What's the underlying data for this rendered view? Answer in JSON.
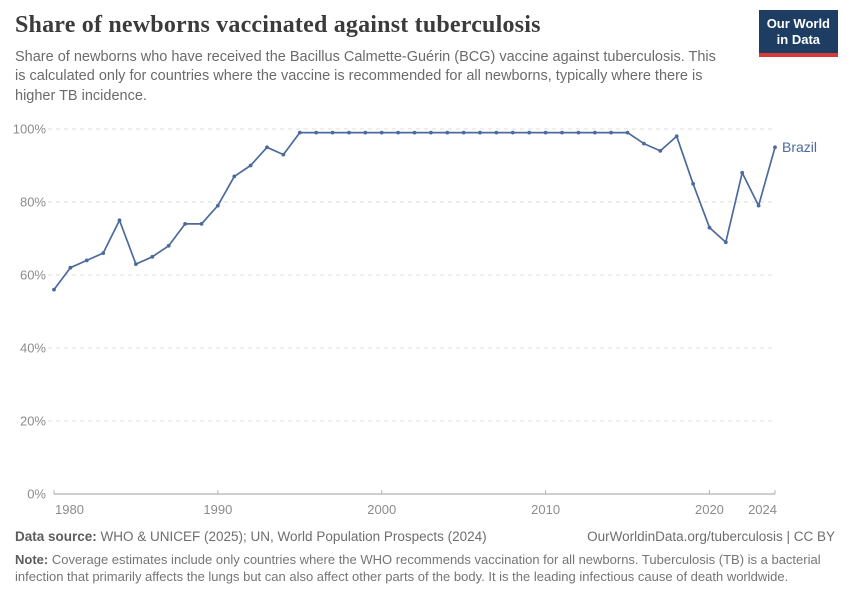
{
  "header": {
    "title": "Share of newborns vaccinated against tuberculosis",
    "subtitle": "Share of newborns who have received the Bacillus Calmette-Guérin (BCG) vaccine against tuberculosis. This is calculated only for countries where the vaccine is recommended for all newborns, typically where there is higher TB incidence.",
    "logo": {
      "line1": "Our World",
      "line2": "in Data",
      "bg_color": "#1d3d63",
      "accent_color": "#d73a3a"
    }
  },
  "chart_data": {
    "type": "line",
    "title": "Share of newborns vaccinated against tuberculosis",
    "xlabel": "",
    "ylabel": "",
    "xlim": [
      1980,
      2024
    ],
    "ylim": [
      0,
      100
    ],
    "x_ticks": [
      1980,
      1990,
      2000,
      2010,
      2020,
      2024
    ],
    "y_ticks": [
      0,
      20,
      40,
      60,
      80,
      100
    ],
    "y_tick_suffix": "%",
    "grid": "horizontal-dashed",
    "legend_position": "end-of-line-label",
    "end_label": "Brazil",
    "series": [
      {
        "name": "Brazil",
        "color": "#4c6a9c",
        "x": [
          1980,
          1981,
          1982,
          1983,
          1984,
          1985,
          1986,
          1987,
          1988,
          1989,
          1990,
          1991,
          1992,
          1993,
          1994,
          1995,
          1996,
          1997,
          1998,
          1999,
          2000,
          2001,
          2002,
          2003,
          2004,
          2005,
          2006,
          2007,
          2008,
          2009,
          2010,
          2011,
          2012,
          2013,
          2014,
          2015,
          2016,
          2017,
          2018,
          2019,
          2020,
          2021,
          2022,
          2023,
          2024
        ],
        "values": [
          56,
          62,
          64,
          66,
          75,
          63,
          65,
          68,
          74,
          74,
          79,
          87,
          90,
          95,
          93,
          99,
          99,
          99,
          99,
          99,
          99,
          99,
          99,
          99,
          99,
          99,
          99,
          99,
          99,
          99,
          99,
          99,
          99,
          99,
          99,
          99,
          96,
          94,
          98,
          85,
          73,
          69,
          88,
          79,
          95
        ]
      }
    ],
    "axis_colors": {
      "tick_label": "#8c8c8c",
      "gridline": "#dcdcdc",
      "axis_line": "#9e9e9e"
    }
  },
  "footer": {
    "datasource_label": "Data source:",
    "datasource_text": " WHO & UNICEF (2025); UN, World Population Prospects (2024)",
    "attribution": "OurWorldinData.org/tuberculosis | CC BY",
    "note_label": "Note:",
    "note_text": " Coverage estimates include only countries where the WHO recommends vaccination for all newborns. Tuberculosis (TB) is a bacterial infection that primarily affects the lungs but can also affect other parts of the body. It is the leading infectious cause of death worldwide."
  }
}
